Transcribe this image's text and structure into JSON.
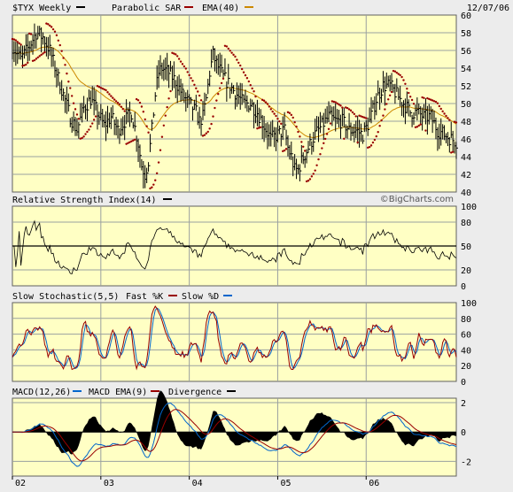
{
  "header": {
    "symbol": "$TYX Weekly",
    "date": "12/07/06",
    "overlays": [
      {
        "label": "Parabolic SAR",
        "color": "#990000"
      },
      {
        "label": "EMA(40)",
        "color": "#cc8800"
      }
    ]
  },
  "watermark": "©BigCharts.com",
  "x_axis": {
    "labels": [
      "02",
      "03",
      "04",
      "05",
      "06"
    ],
    "range": [
      0,
      261
    ],
    "label_weeks": [
      0,
      52,
      104,
      156,
      208
    ]
  },
  "colors": {
    "background": "#ffffc4",
    "frame": "#ececec",
    "grid": "#9aa0a0",
    "price": "#000000",
    "sar": "#990000",
    "ema": "#cc8800",
    "stoch_k": "#990000",
    "stoch_d": "#0066cc",
    "macd": "#0066cc",
    "macd_ema": "#990000",
    "divergence": "#000000",
    "rsi": "#000000"
  },
  "chart_data": [
    {
      "type": "ohlc",
      "panel": "price",
      "ylim": [
        40,
        60
      ],
      "y_ticks": [
        40,
        42,
        44,
        46,
        48,
        50,
        52,
        54,
        56,
        58,
        60
      ],
      "series": [
        {
          "name": "$TYX Weekly",
          "style": "hlc-bars"
        },
        {
          "name": "Parabolic SAR",
          "style": "dots"
        },
        {
          "name": "EMA(40)",
          "style": "line"
        }
      ],
      "anchors": [
        [
          0,
          56.5
        ],
        [
          5,
          55.0
        ],
        [
          10,
          56.5
        ],
        [
          14,
          58.0
        ],
        [
          18,
          57.5
        ],
        [
          22,
          56.0
        ],
        [
          26,
          53.5
        ],
        [
          30,
          51.0
        ],
        [
          34,
          48.5
        ],
        [
          38,
          47.0
        ],
        [
          42,
          49.5
        ],
        [
          46,
          50.5
        ],
        [
          50,
          49.0
        ],
        [
          54,
          47.5
        ],
        [
          58,
          48.5
        ],
        [
          62,
          47.0
        ],
        [
          66,
          48.0
        ],
        [
          70,
          49.0
        ],
        [
          74,
          45.5
        ],
        [
          76,
          43.0
        ],
        [
          78,
          42.0
        ],
        [
          80,
          43.5
        ],
        [
          82,
          47.0
        ],
        [
          84,
          51.0
        ],
        [
          86,
          53.5
        ],
        [
          88,
          54.0
        ],
        [
          92,
          53.5
        ],
        [
          96,
          52.5
        ],
        [
          100,
          51.0
        ],
        [
          104,
          50.0
        ],
        [
          108,
          49.0
        ],
        [
          110,
          48.0
        ],
        [
          112,
          48.5
        ],
        [
          114,
          50.5
        ],
        [
          116,
          53.5
        ],
        [
          118,
          55.5
        ],
        [
          120,
          54.5
        ],
        [
          124,
          53.0
        ],
        [
          128,
          52.0
        ],
        [
          132,
          51.0
        ],
        [
          136,
          50.0
        ],
        [
          140,
          50.0
        ],
        [
          144,
          49.0
        ],
        [
          148,
          47.5
        ],
        [
          152,
          46.0
        ],
        [
          156,
          46.5
        ],
        [
          160,
          47.0
        ],
        [
          162,
          45.0
        ],
        [
          164,
          44.0
        ],
        [
          166,
          42.5
        ],
        [
          168,
          42.5
        ],
        [
          170,
          43.5
        ],
        [
          174,
          45.0
        ],
        [
          178,
          46.5
        ],
        [
          182,
          47.5
        ],
        [
          186,
          48.5
        ],
        [
          190,
          48.0
        ],
        [
          194,
          48.0
        ],
        [
          198,
          47.0
        ],
        [
          202,
          47.0
        ],
        [
          206,
          46.5
        ],
        [
          210,
          48.0
        ],
        [
          214,
          50.5
        ],
        [
          218,
          52.0
        ],
        [
          222,
          52.0
        ],
        [
          226,
          51.0
        ],
        [
          230,
          50.0
        ],
        [
          234,
          49.0
        ],
        [
          238,
          49.0
        ],
        [
          242,
          48.5
        ],
        [
          246,
          48.5
        ],
        [
          250,
          47.0
        ],
        [
          254,
          46.5
        ],
        [
          258,
          46.0
        ],
        [
          261,
          45.7
        ]
      ]
    },
    {
      "type": "line",
      "panel": "rsi",
      "title": "Relative Strength Index(14)",
      "ylim": [
        0,
        100
      ],
      "y_ticks": [
        0,
        20,
        50,
        80,
        100
      ],
      "reference_line": 50,
      "series": [
        {
          "name": "Relative Strength Index(14)"
        }
      ]
    },
    {
      "type": "line",
      "panel": "stochastic",
      "title": "Slow Stochastic(5,5)",
      "ylim": [
        0,
        100
      ],
      "y_ticks": [
        0,
        20,
        40,
        60,
        80,
        100
      ],
      "series": [
        {
          "name": "Fast %K"
        },
        {
          "name": "Slow %D"
        }
      ]
    },
    {
      "type": "line",
      "panel": "macd",
      "title": "MACD(12,26)",
      "ylim": [
        -3,
        2.3
      ],
      "y_ticks": [
        -2,
        0,
        2
      ],
      "y_tick_labels": [
        "-2",
        "0",
        "2"
      ],
      "series": [
        {
          "name": "MACD"
        },
        {
          "name": "EMA(9)"
        },
        {
          "name": "Divergence"
        }
      ]
    }
  ],
  "panels": {
    "rsi": {
      "title": "Relative Strength Index(14)",
      "legend": [
        {
          "label": "",
          "color": "#000000"
        }
      ]
    },
    "stochastic": {
      "title": "Slow Stochastic(5,5)",
      "legend": [
        {
          "label": "Fast %K",
          "color": "#990000"
        },
        {
          "label": "Slow %D",
          "color": "#0066cc"
        }
      ]
    },
    "macd": {
      "title": "MACD(12,26)",
      "legend": [
        {
          "label": "MACD EMA(9)",
          "color": "#0066cc"
        },
        {
          "label": "Divergence",
          "color": "#990000"
        },
        {
          "label": "",
          "color": "#000000"
        }
      ]
    }
  }
}
